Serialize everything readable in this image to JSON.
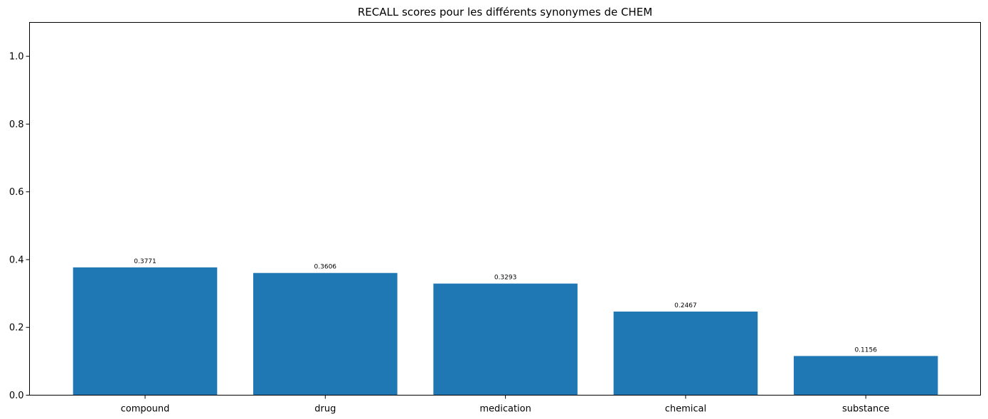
{
  "chart_data": {
    "type": "bar",
    "title": "RECALL scores pour les différents synonymes de CHEM",
    "xlabel": "",
    "ylabel": "",
    "categories": [
      "compound",
      "drug",
      "medication",
      "chemical",
      "substance"
    ],
    "values": [
      0.3771,
      0.3606,
      0.3293,
      0.2467,
      0.1156
    ],
    "value_labels": [
      "0.3771",
      "0.3606",
      "0.3293",
      "0.2467",
      "0.1156"
    ],
    "ylim": [
      0,
      1.1
    ],
    "yticks": [
      0.0,
      0.2,
      0.4,
      0.6,
      0.8,
      1.0
    ],
    "ytick_labels": [
      "0.0",
      "0.2",
      "0.4",
      "0.6",
      "0.8",
      "1.0"
    ],
    "bar_color": "#1f77b4",
    "grid": false,
    "legend": "none"
  }
}
